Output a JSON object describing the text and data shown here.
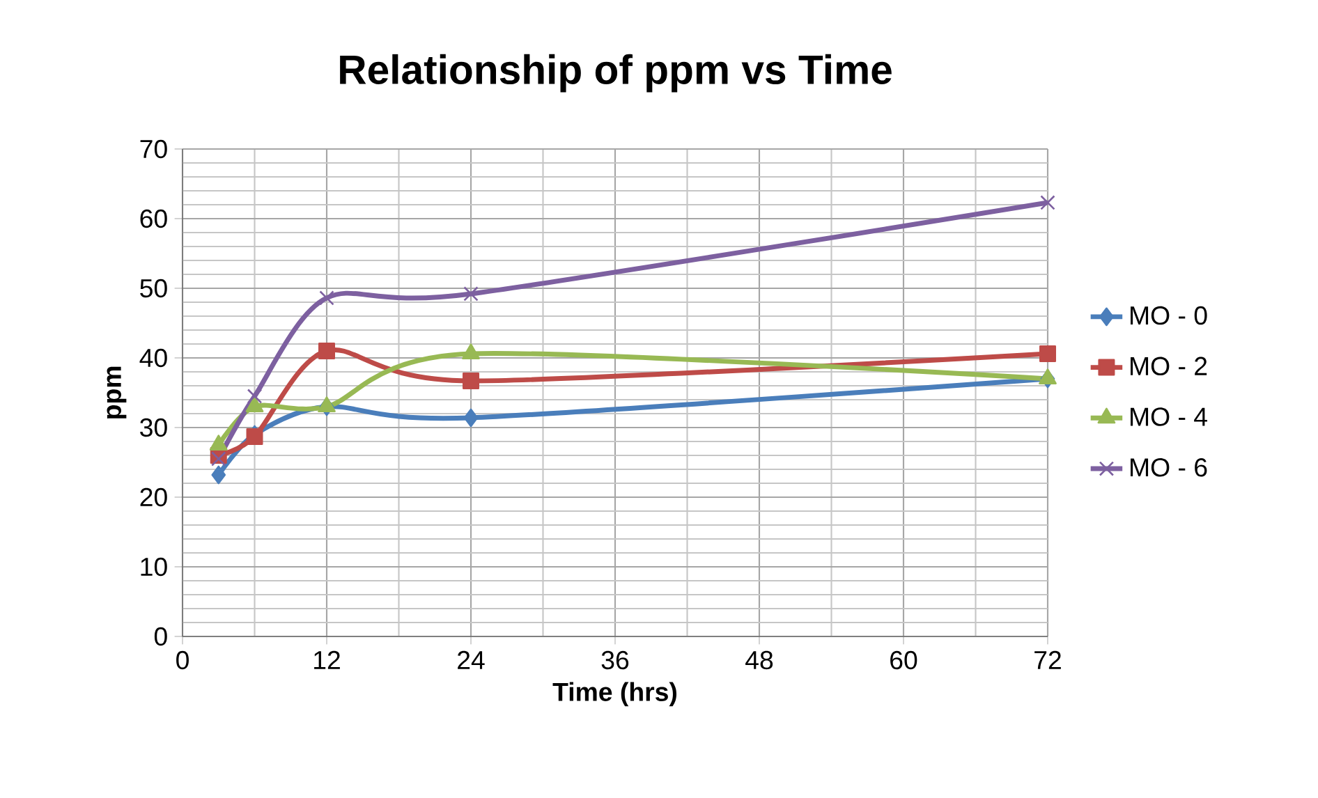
{
  "chart_data": {
    "type": "line",
    "title": "Relationship of ppm vs Time",
    "xlabel": "Time (hrs)",
    "ylabel": "ppm",
    "x": [
      3,
      6,
      12,
      24,
      72
    ],
    "series": [
      {
        "name": "MO - 0",
        "color": "#4a7ebb",
        "marker": "diamond",
        "values": [
          23.2,
          29,
          33,
          31.4,
          37
        ]
      },
      {
        "name": "MO - 2",
        "color": "#be4b48",
        "marker": "square",
        "values": [
          26,
          28.7,
          41,
          36.7,
          40.6
        ]
      },
      {
        "name": "MO - 4",
        "color": "#98b954",
        "marker": "triangle",
        "values": [
          27.5,
          33,
          33,
          40.6,
          37
        ]
      },
      {
        "name": "MO - 6",
        "color": "#7d60a0",
        "marker": "cross",
        "values": [
          25.5,
          34.5,
          48.6,
          49.2,
          62.3
        ]
      }
    ],
    "xlim": [
      0,
      72
    ],
    "xticks": [
      0,
      12,
      24,
      36,
      48,
      60,
      72
    ],
    "ylim": [
      0,
      70
    ],
    "yticks": [
      0,
      10,
      20,
      30,
      40,
      50,
      60,
      70
    ],
    "grid": true,
    "legend": "right"
  }
}
